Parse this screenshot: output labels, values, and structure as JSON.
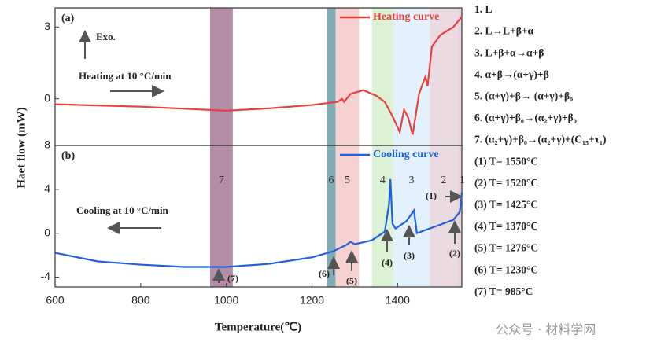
{
  "chart_data": [
    {
      "type": "line",
      "panel": "(a)",
      "ylim": [
        -1.95,
        3.8
      ],
      "yticks": [
        0,
        3
      ],
      "annotations": [
        "Exo.",
        "Heating at 10 °C/min"
      ],
      "series": [
        {
          "name": "Heating curve",
          "color": "#e8403f",
          "x": [
            600,
            800,
            1000,
            1100,
            1200,
            1260,
            1270,
            1275,
            1290,
            1320,
            1350,
            1370,
            1390,
            1405,
            1415,
            1425,
            1435,
            1450,
            1460,
            1465,
            1470,
            1480,
            1500,
            1530,
            1550
          ],
          "values": [
            -0.23,
            -0.33,
            -0.5,
            -0.4,
            -0.26,
            -0.13,
            0,
            -0.13,
            0.2,
            0.36,
            0.13,
            -0.13,
            -0.8,
            -1.39,
            -0.46,
            -0.8,
            -1.5,
            0.2,
            0.7,
            0.92,
            0.53,
            2.18,
            2.67,
            3,
            3.43
          ]
        }
      ]
    },
    {
      "type": "line",
      "panel": "(b)",
      "ylim": [
        -4.9,
        8
      ],
      "yticks": [
        -4,
        0,
        4,
        8
      ],
      "xlim": [
        600,
        1550
      ],
      "xticks": [
        600,
        800,
        1000,
        1200,
        1400
      ],
      "xlabel": "Temperature(℃)",
      "annotations": [
        "Cooling at 10 °C/min"
      ],
      "markers": [
        "(1)",
        "(2)",
        "(3)",
        "(4)",
        "(5)",
        "(6)",
        "(7)"
      ],
      "series": [
        {
          "name": "Cooling curve",
          "color": "#1f5fe0",
          "x": [
            600,
            700,
            800,
            900,
            1000,
            1100,
            1200,
            1250,
            1280,
            1290,
            1300,
            1340,
            1370,
            1380,
            1383,
            1388,
            1395,
            1420,
            1438,
            1445,
            1480,
            1530,
            1545,
            1550
          ],
          "values": [
            -1.79,
            -2.57,
            -2.86,
            -3.07,
            -3.07,
            -2.79,
            -2.2,
            -1.64,
            -1.07,
            -0.79,
            -1,
            -0.64,
            0.14,
            2.64,
            4.93,
            0.86,
            0.43,
            1.07,
            2.07,
            0,
            0.5,
            1.21,
            1.93,
            3.71
          ]
        }
      ]
    }
  ],
  "ylabel": "Haet flow (mW)",
  "regions": [
    {
      "label": "7",
      "start": 962,
      "end": 1015,
      "color": "#a87898"
    },
    {
      "label": "6",
      "start": 1235,
      "end": 1255,
      "color": "#6a9fa8"
    },
    {
      "label": "5",
      "start": 1255,
      "end": 1310,
      "color": "#f6c8c8"
    },
    {
      "label": "4",
      "start": 1340,
      "end": 1390,
      "color": "#d6f0cc"
    },
    {
      "label": "3",
      "start": 1390,
      "end": 1475,
      "color": "#ddeefa"
    },
    {
      "label": "2",
      "start": 1475,
      "end": 1540,
      "color": "#e8d4dc"
    },
    {
      "label": "1",
      "start": 1540,
      "end": 1550,
      "color": "#e4ccd8"
    }
  ],
  "legend_list": [
    "1. L",
    "2. L→L+β+α",
    "3. L+β+α→α+β",
    "4. α+β→(α+γ)+β",
    "5. (α+γ)+β→ (α+γ)+β₀",
    "6. (α+γ)+β₀→(α₂+γ)+β₀",
    "7. (α₂+γ)+β₀→(α₂+γ)+(C₁₅+τ₁)",
    "(1) T= 1550°C",
    "(2) T= 1520°C",
    "(3) T= 1425°C",
    "(4) T= 1370°C",
    "(5) T= 1276°C",
    "(6) T= 1230°C",
    "(7) T= 985°C"
  ],
  "watermark": "公众号 · 材料学网"
}
